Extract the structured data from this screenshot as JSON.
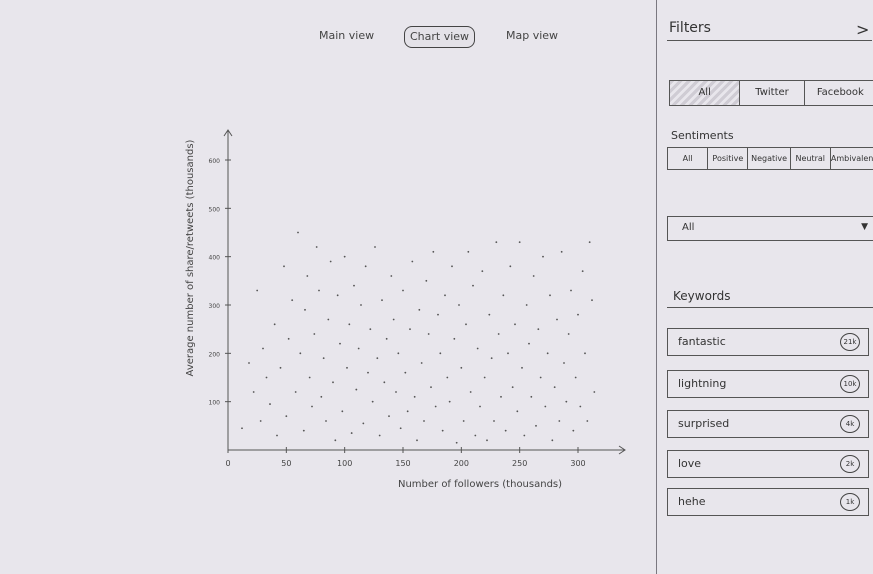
{
  "views": {
    "main": "Main view",
    "chart": "Chart view",
    "map": "Map view"
  },
  "chart_data": {
    "type": "scatter",
    "xlabel": "Number of followers (thousands)",
    "ylabel": "Average number of share/retweets (thousands)",
    "x_ticks": [
      "0",
      "50",
      "100",
      "150",
      "200",
      "250",
      "300"
    ],
    "y_ticks": [
      "100",
      "200",
      "300",
      "400",
      "500",
      "600"
    ],
    "xlim": [
      0,
      340
    ],
    "ylim": [
      0,
      650
    ],
    "points": [
      [
        12,
        45
      ],
      [
        18,
        180
      ],
      [
        22,
        120
      ],
      [
        25,
        330
      ],
      [
        28,
        60
      ],
      [
        30,
        210
      ],
      [
        33,
        150
      ],
      [
        36,
        95
      ],
      [
        40,
        260
      ],
      [
        42,
        30
      ],
      [
        45,
        170
      ],
      [
        48,
        380
      ],
      [
        50,
        70
      ],
      [
        52,
        230
      ],
      [
        55,
        310
      ],
      [
        58,
        120
      ],
      [
        60,
        450
      ],
      [
        62,
        200
      ],
      [
        65,
        40
      ],
      [
        66,
        290
      ],
      [
        68,
        360
      ],
      [
        70,
        150
      ],
      [
        72,
        90
      ],
      [
        74,
        240
      ],
      [
        76,
        420
      ],
      [
        78,
        330
      ],
      [
        80,
        110
      ],
      [
        82,
        190
      ],
      [
        84,
        60
      ],
      [
        86,
        270
      ],
      [
        88,
        390
      ],
      [
        90,
        140
      ],
      [
        92,
        20
      ],
      [
        94,
        320
      ],
      [
        96,
        220
      ],
      [
        98,
        80
      ],
      [
        100,
        400
      ],
      [
        102,
        170
      ],
      [
        104,
        260
      ],
      [
        106,
        35
      ],
      [
        108,
        340
      ],
      [
        110,
        125
      ],
      [
        112,
        210
      ],
      [
        114,
        300
      ],
      [
        116,
        55
      ],
      [
        118,
        380
      ],
      [
        120,
        160
      ],
      [
        122,
        250
      ],
      [
        124,
        100
      ],
      [
        126,
        420
      ],
      [
        128,
        190
      ],
      [
        130,
        30
      ],
      [
        132,
        310
      ],
      [
        134,
        140
      ],
      [
        136,
        230
      ],
      [
        138,
        70
      ],
      [
        140,
        360
      ],
      [
        142,
        270
      ],
      [
        144,
        120
      ],
      [
        146,
        200
      ],
      [
        148,
        45
      ],
      [
        150,
        330
      ],
      [
        152,
        160
      ],
      [
        154,
        80
      ],
      [
        156,
        250
      ],
      [
        158,
        390
      ],
      [
        160,
        110
      ],
      [
        162,
        20
      ],
      [
        164,
        290
      ],
      [
        166,
        180
      ],
      [
        168,
        60
      ],
      [
        170,
        350
      ],
      [
        172,
        240
      ],
      [
        174,
        130
      ],
      [
        176,
        410
      ],
      [
        178,
        90
      ],
      [
        180,
        280
      ],
      [
        182,
        200
      ],
      [
        184,
        40
      ],
      [
        186,
        320
      ],
      [
        188,
        150
      ],
      [
        190,
        100
      ],
      [
        192,
        380
      ],
      [
        194,
        230
      ],
      [
        196,
        15
      ],
      [
        198,
        300
      ],
      [
        200,
        170
      ],
      [
        202,
        60
      ],
      [
        204,
        260
      ],
      [
        206,
        410
      ],
      [
        208,
        120
      ],
      [
        210,
        340
      ],
      [
        212,
        30
      ],
      [
        214,
        210
      ],
      [
        216,
        90
      ],
      [
        218,
        370
      ],
      [
        220,
        150
      ],
      [
        222,
        20
      ],
      [
        224,
        280
      ],
      [
        226,
        190
      ],
      [
        228,
        60
      ],
      [
        230,
        430
      ],
      [
        232,
        240
      ],
      [
        234,
        110
      ],
      [
        236,
        320
      ],
      [
        238,
        40
      ],
      [
        240,
        200
      ],
      [
        242,
        380
      ],
      [
        244,
        130
      ],
      [
        246,
        260
      ],
      [
        248,
        80
      ],
      [
        250,
        430
      ],
      [
        252,
        170
      ],
      [
        254,
        30
      ],
      [
        256,
        300
      ],
      [
        258,
        220
      ],
      [
        260,
        110
      ],
      [
        262,
        360
      ],
      [
        264,
        50
      ],
      [
        266,
        250
      ],
      [
        268,
        150
      ],
      [
        270,
        400
      ],
      [
        272,
        90
      ],
      [
        274,
        200
      ],
      [
        276,
        320
      ],
      [
        278,
        20
      ],
      [
        280,
        130
      ],
      [
        282,
        270
      ],
      [
        284,
        60
      ],
      [
        286,
        410
      ],
      [
        288,
        180
      ],
      [
        290,
        100
      ],
      [
        292,
        240
      ],
      [
        294,
        330
      ],
      [
        296,
        40
      ],
      [
        298,
        150
      ],
      [
        300,
        280
      ],
      [
        302,
        90
      ],
      [
        304,
        370
      ],
      [
        306,
        200
      ],
      [
        308,
        60
      ],
      [
        310,
        430
      ],
      [
        312,
        310
      ],
      [
        314,
        120
      ]
    ]
  },
  "sidebar": {
    "filters_title": "Filters",
    "chevron": ">",
    "platforms": [
      "All",
      "Twitter",
      "Facebook"
    ],
    "sentiments_title": "Sentiments",
    "sentiments": [
      "All",
      "Positive",
      "Negative",
      "Neutral",
      "Ambivalent"
    ],
    "dropdown_value": "All",
    "dropdown_caret": "▼",
    "keywords_title": "Keywords",
    "keywords": [
      {
        "label": "fantastic",
        "count": "21k"
      },
      {
        "label": "lightning",
        "count": "10k"
      },
      {
        "label": "surprised",
        "count": "4k"
      },
      {
        "label": "love",
        "count": "2k"
      },
      {
        "label": "hehe",
        "count": "1k"
      }
    ]
  }
}
